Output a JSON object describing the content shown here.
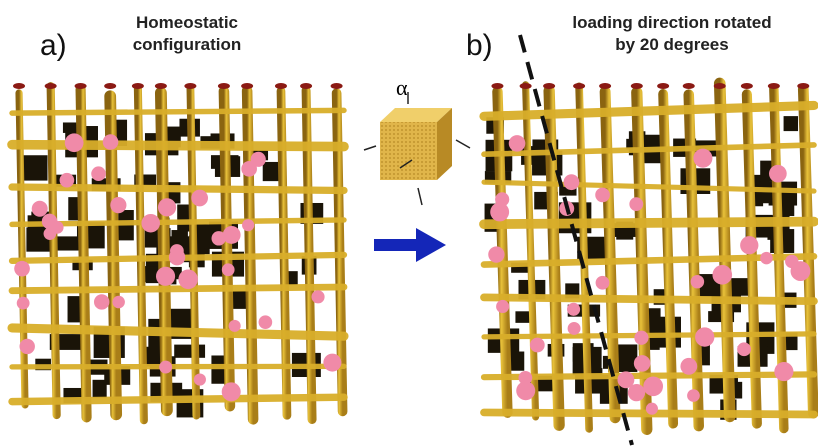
{
  "panel_a": {
    "label": "a)",
    "title": [
      "Homeostatic",
      "configuration"
    ]
  },
  "cube": {
    "label": "α"
  },
  "panel_b": {
    "label": "b)",
    "title": [
      "loading direction rotated",
      "by 20 degrees"
    ]
  }
}
